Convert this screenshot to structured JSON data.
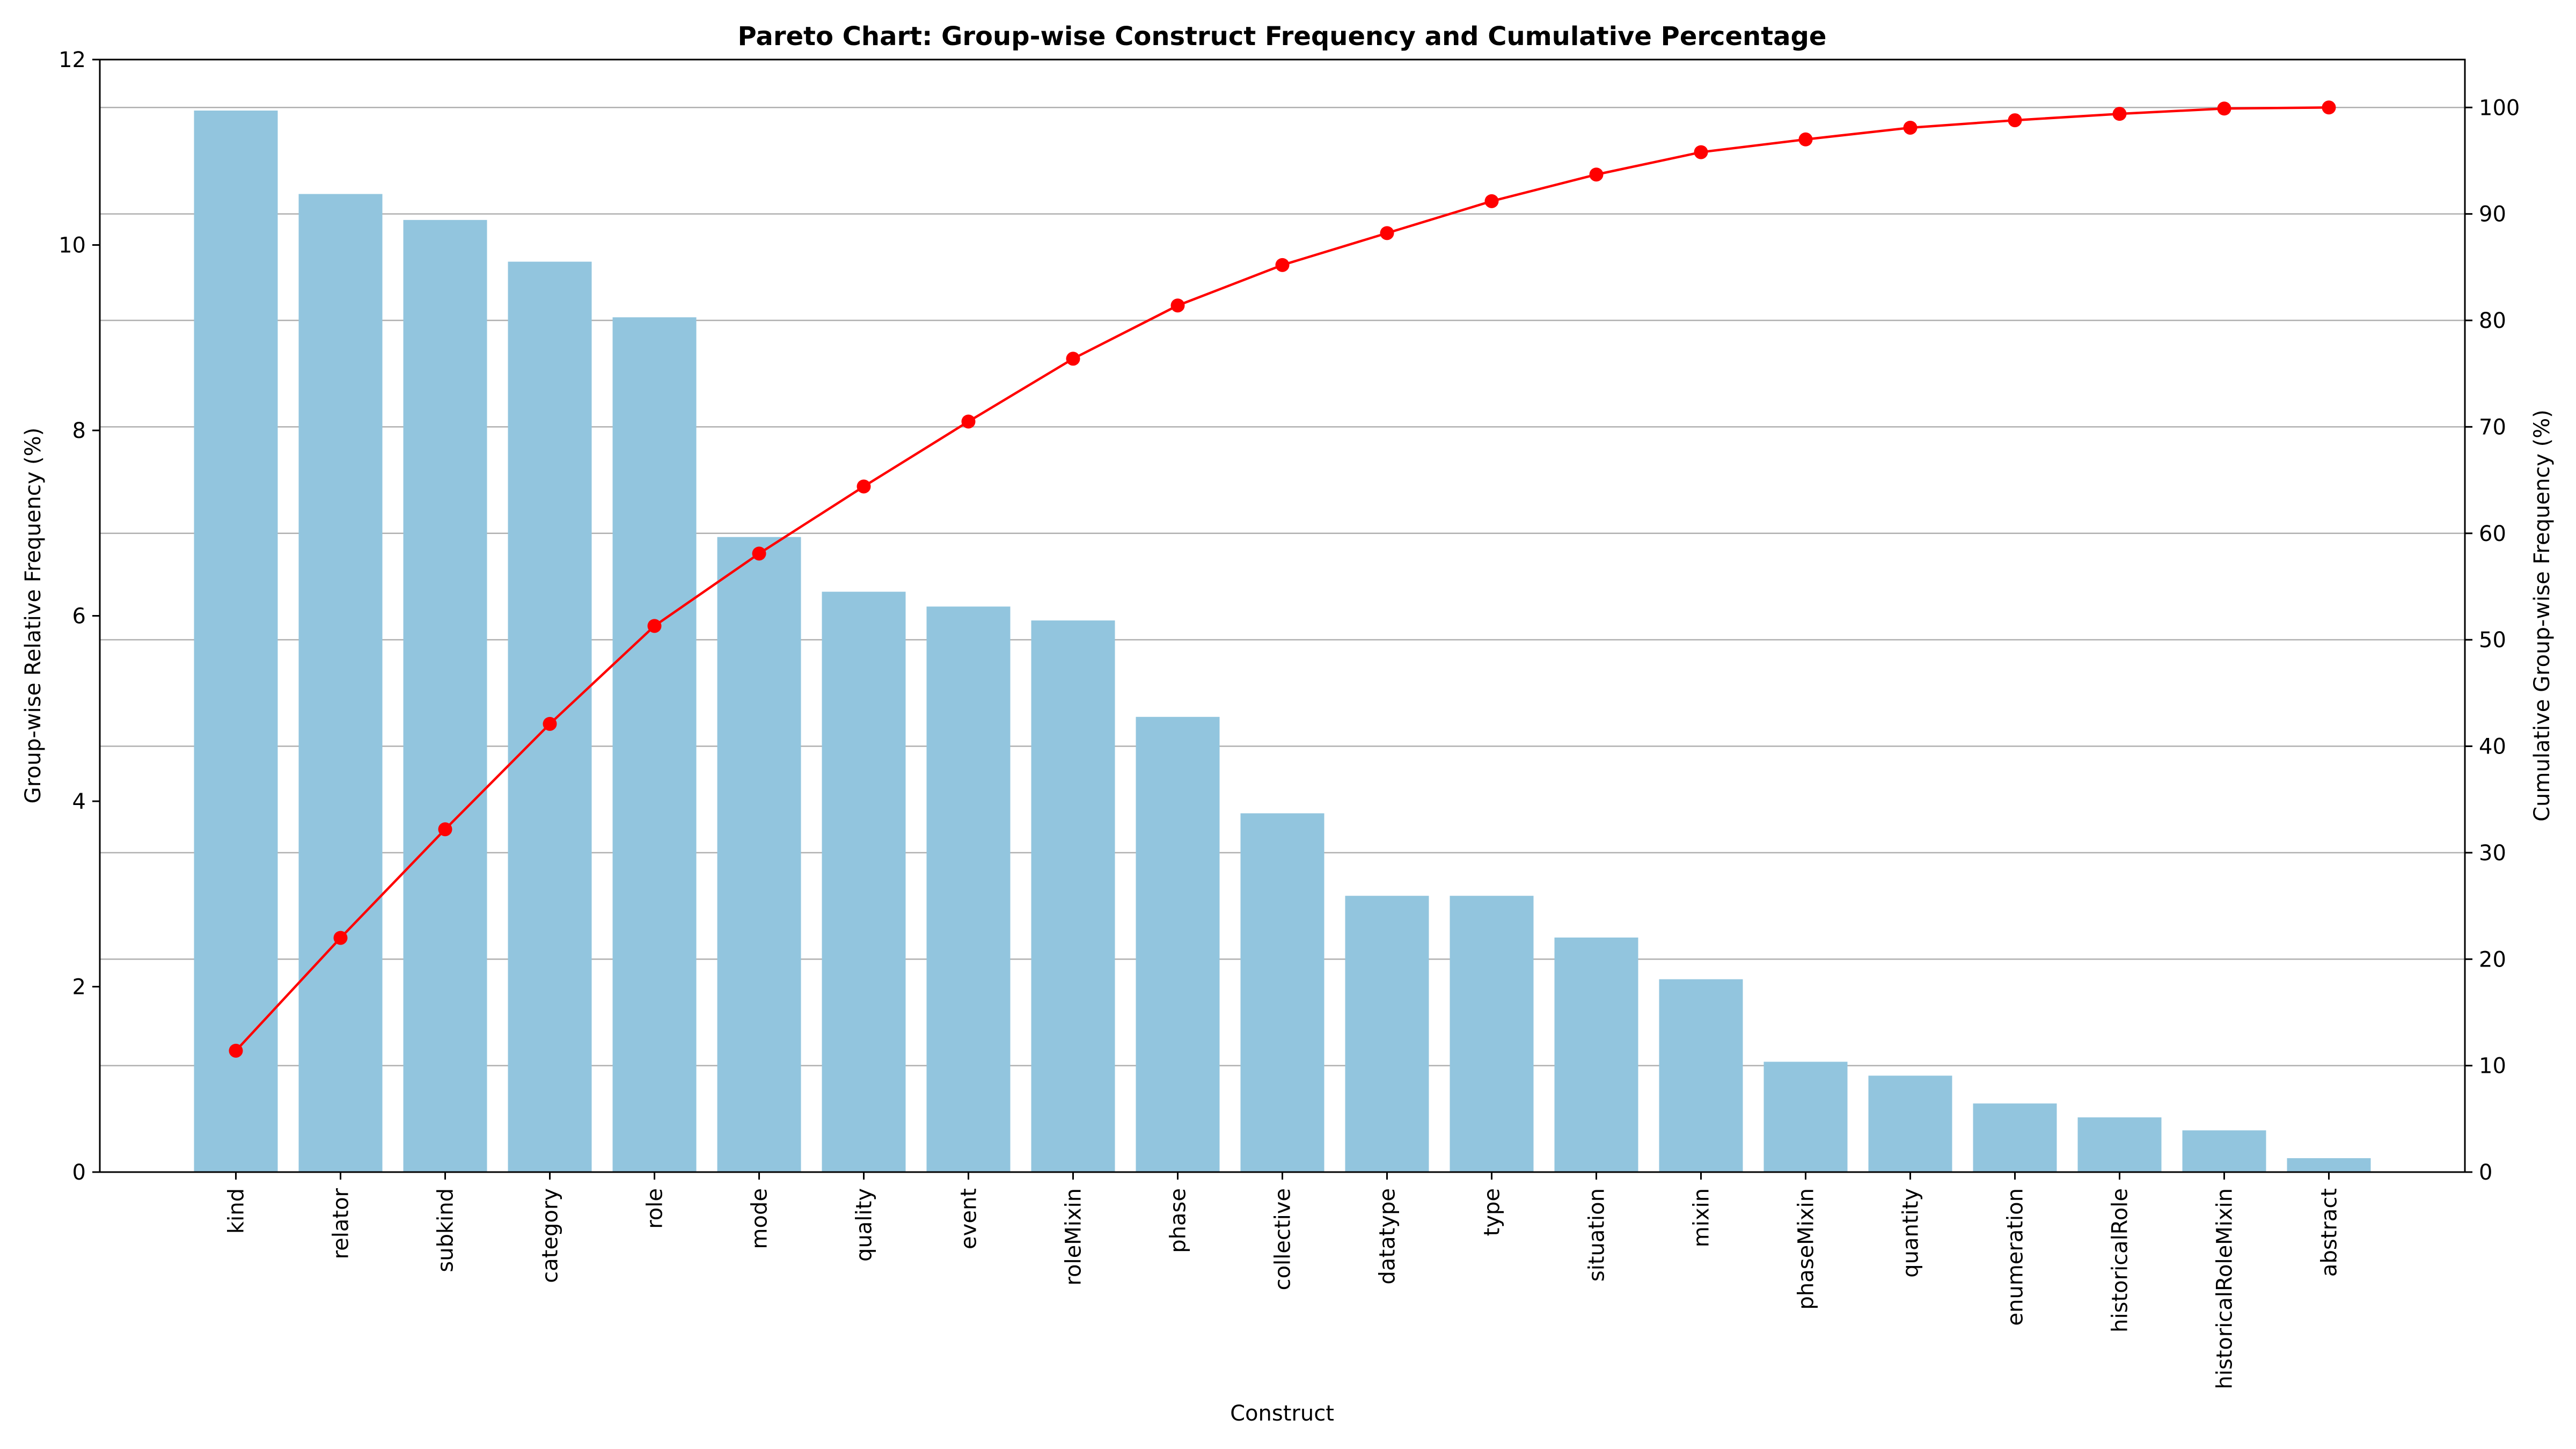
{
  "chart_data": {
    "type": "bar",
    "title": "Pareto Chart: Group-wise Construct Frequency and Cumulative Percentage",
    "xlabel": "Construct",
    "ylabel": "Group-wise Relative Frequency (%)",
    "y2label": "Cumulative Group-wise Frequency (%)",
    "ylim": [
      0,
      12
    ],
    "y2lim": [
      0,
      104.5
    ],
    "yticks": [
      0,
      2,
      4,
      6,
      8,
      10,
      12
    ],
    "y2ticks": [
      0,
      10,
      20,
      30,
      40,
      50,
      60,
      70,
      80,
      90,
      100
    ],
    "grid": "right-axis horizontal",
    "categories": [
      "kind",
      "relator",
      "subkind",
      "category",
      "role",
      "mode",
      "quality",
      "event",
      "roleMixin",
      "phase",
      "collective",
      "datatype",
      "type",
      "situation",
      "mixin",
      "phaseMixin",
      "quantity",
      "enumeration",
      "historicalRole",
      "historicalRoleMixin",
      "abstract"
    ],
    "series": [
      {
        "type": "bar",
        "axis": "left",
        "color": "#92C5DE",
        "values": [
          11.45,
          10.55,
          10.27,
          9.82,
          9.22,
          6.85,
          6.26,
          6.1,
          5.95,
          4.91,
          3.87,
          2.98,
          2.98,
          2.53,
          2.08,
          1.19,
          1.04,
          0.74,
          0.59,
          0.45,
          0.15
        ]
      },
      {
        "type": "line",
        "axis": "right",
        "color": "#ff0000",
        "marker": "circle",
        "values": [
          11.4,
          22.0,
          32.2,
          42.1,
          51.3,
          58.1,
          64.4,
          70.5,
          76.4,
          81.4,
          85.2,
          88.2,
          91.2,
          93.7,
          95.8,
          97.0,
          98.1,
          98.8,
          99.4,
          99.9,
          100.0
        ]
      }
    ]
  }
}
